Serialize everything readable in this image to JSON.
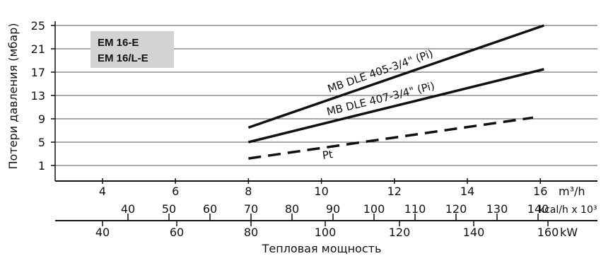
{
  "chart_data": {
    "type": "line",
    "model_labels": [
      "EM 16-E",
      "EM 16/L-E"
    ],
    "ylabel": "Потери давления (мбар)",
    "xlabel": "Тепловая мощность",
    "yticks": [
      1,
      5,
      9,
      13,
      17,
      21,
      25
    ],
    "ylim": [
      0,
      26
    ],
    "grid": true,
    "x_axes": [
      {
        "unit_label": "m³/h",
        "ticks": [
          4,
          6,
          8,
          10,
          12,
          14,
          16
        ]
      },
      {
        "unit_label": "kcal/h x 10³",
        "ticks": [
          40,
          50,
          60,
          70,
          80,
          90,
          100,
          110,
          120,
          130,
          140
        ]
      },
      {
        "unit_label": "kW",
        "ticks": [
          40,
          60,
          80,
          100,
          120,
          140,
          160
        ]
      }
    ],
    "series": [
      {
        "name": "MB DLE 405-3/4\" (Pi)",
        "style": "solid",
        "color": "#111111",
        "points": [
          [
            8,
            7.5
          ],
          [
            16.1,
            25
          ]
        ]
      },
      {
        "name": "MB DLE 407-3/4\" (Pi)",
        "style": "solid",
        "color": "#111111",
        "points": [
          [
            8,
            5
          ],
          [
            16.1,
            17.5
          ]
        ]
      },
      {
        "name": "Pt",
        "style": "dashed",
        "color": "#111111",
        "points": [
          [
            8,
            2.2
          ],
          [
            15.8,
            9.2
          ]
        ]
      }
    ]
  }
}
